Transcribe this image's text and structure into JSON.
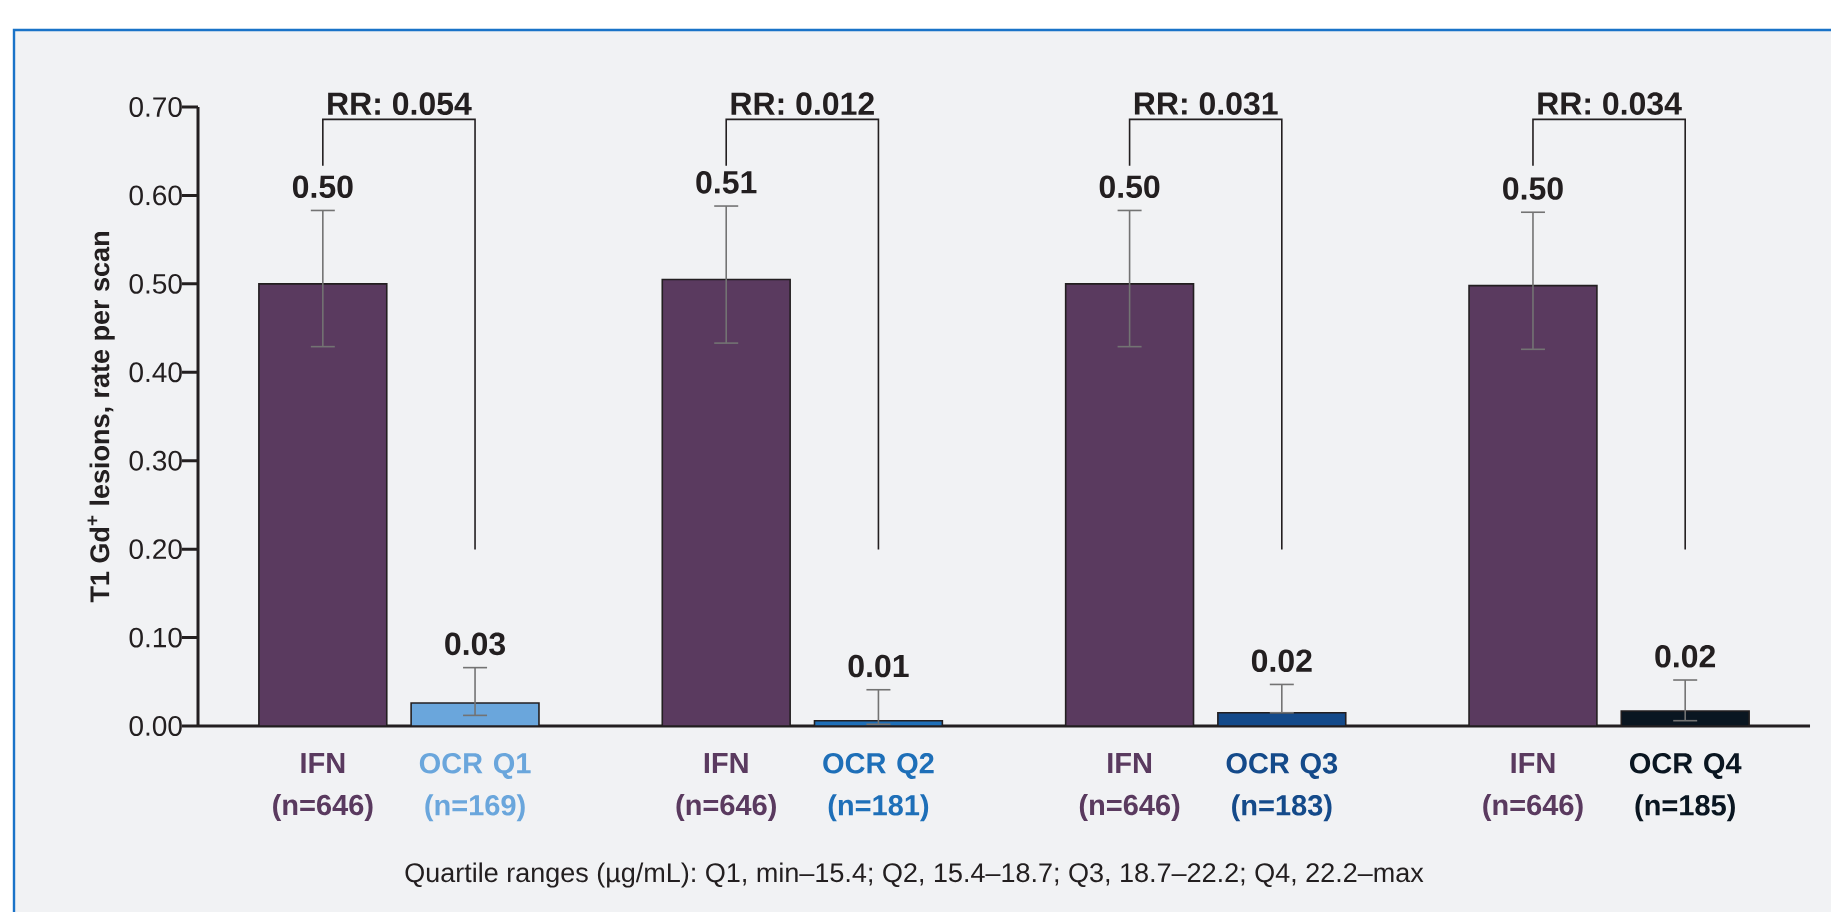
{
  "chart_data": {
    "type": "bar",
    "ylabel": "T1 Gd$^{+}$ lesions, rate per scan",
    "categories": [
      "IFN (n=646)",
      "OCR Q1 (n=169)",
      "IFN (n=646)",
      "OCR Q2 (n=181)",
      "IFN (n=646)",
      "OCR Q3 (n=183)",
      "IFN (n=646)",
      "OCR Q4 (n=185)"
    ],
    "values": [
      0.5,
      0.026,
      0.505,
      0.006,
      0.5,
      0.015,
      0.498,
      0.017
    ],
    "colors": [
      "#5a3a5f",
      "#6aa6dc",
      "#5a3a5f",
      "#1e6fb8",
      "#5a3a5f",
      "#144a8a",
      "#5a3a5f",
      "#0a1621"
    ],
    "errors": [
      [
        0.429,
        0.583
      ],
      [
        0.012,
        0.066
      ],
      [
        0.433,
        0.588
      ],
      [
        0.002,
        0.041
      ],
      [
        0.429,
        0.583
      ],
      [
        0.015,
        0.047
      ],
      [
        0.426,
        0.581
      ],
      [
        0.006,
        0.052
      ]
    ],
    "value_labels": [
      "0.50",
      "0.03",
      "0.51",
      "0.01",
      "0.50",
      "0.02",
      "0.50",
      "0.02"
    ],
    "ylim": [
      0,
      0.7
    ],
    "yticks": [
      {
        "value": 0,
        "label": "0.00"
      },
      {
        "value": 0.1,
        "label": "0.10"
      },
      {
        "value": 0.2,
        "label": "0.20"
      },
      {
        "value": 0.3,
        "label": "0.30"
      },
      {
        "value": 0.4,
        "label": "0.40"
      },
      {
        "value": 0.5,
        "label": "0.50"
      },
      {
        "value": 0.6,
        "label": "0.60"
      },
      {
        "value": 0.7,
        "label": "0.70"
      }
    ],
    "annotations": [
      "RR: 0.054",
      "RR: 0.012",
      "RR: 0.031",
      "RR: 0.034",
      "Quartile ranges (µg/mL): Q1, min–15.4; Q2, 15.4–18.7; Q3, 18.7–22.2; Q4, 22.2–max"
    ],
    "grid": false
  }
}
